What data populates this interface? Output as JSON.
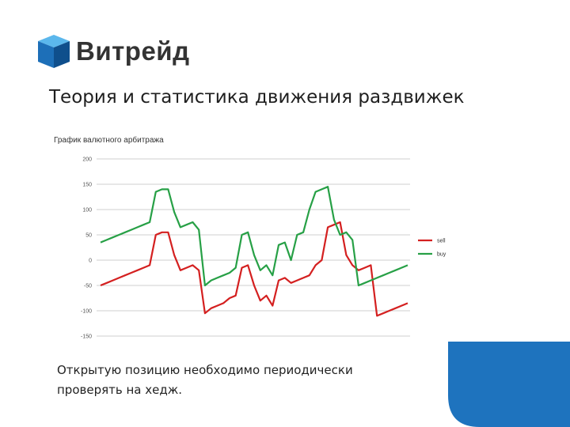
{
  "logo": {
    "text": "Витрейд",
    "cube_colors": {
      "top": "#5bb7ec",
      "left": "#1d6fb8",
      "right": "#0f4f8c"
    }
  },
  "slide": {
    "title": "Теория и статистика движения раздвижек",
    "caption_line1": "Открытую позицию необходимо периодически",
    "caption_line2": "проверять на хедж."
  },
  "chart_data": {
    "type": "line",
    "title": "График валютного арбитража",
    "xlabel": "",
    "ylabel": "",
    "ylim": [
      -150,
      200
    ],
    "yticks": [
      200,
      150,
      100,
      50,
      0,
      -50,
      -100,
      -150
    ],
    "ytick_labels": [
      "200",
      "150",
      "100",
      "50",
      "0",
      "-50",
      "-100",
      "-150"
    ],
    "grid": true,
    "legend_position": "right",
    "x": [
      0,
      1,
      2,
      3,
      4,
      5,
      6,
      7,
      8,
      9,
      10,
      11,
      12,
      13,
      14,
      15,
      16,
      17,
      18,
      19,
      20,
      21,
      22,
      23,
      24,
      25,
      26,
      27,
      28,
      29,
      30,
      31,
      32,
      33,
      34,
      35,
      36,
      37,
      38,
      39,
      40,
      41,
      42,
      43,
      44,
      45,
      46,
      47,
      48,
      49,
      50
    ],
    "series": [
      {
        "name": "sell",
        "color": "#d42020",
        "values": [
          -50,
          -45,
          -40,
          -35,
          -30,
          -25,
          -20,
          -15,
          -10,
          50,
          55,
          55,
          10,
          -20,
          -15,
          -10,
          -20,
          -105,
          -95,
          -90,
          -85,
          -75,
          -70,
          -15,
          -10,
          -50,
          -80,
          -70,
          -90,
          -40,
          -35,
          -45,
          -40,
          -35,
          -30,
          -10,
          0,
          65,
          70,
          75,
          10,
          -10,
          -20,
          -15,
          -10,
          -110,
          -105,
          -100,
          -95,
          -90,
          -85
        ]
      },
      {
        "name": "buy",
        "color": "#27a046",
        "values": [
          35,
          40,
          45,
          50,
          55,
          60,
          65,
          70,
          75,
          135,
          140,
          140,
          95,
          65,
          70,
          75,
          60,
          -50,
          -40,
          -35,
          -30,
          -25,
          -15,
          50,
          55,
          10,
          -20,
          -10,
          -30,
          30,
          35,
          0,
          50,
          55,
          100,
          135,
          140,
          145,
          80,
          50,
          55,
          40,
          -50,
          -45,
          -40,
          -35,
          -30,
          -25,
          -20,
          -15,
          -10
        ]
      }
    ]
  }
}
